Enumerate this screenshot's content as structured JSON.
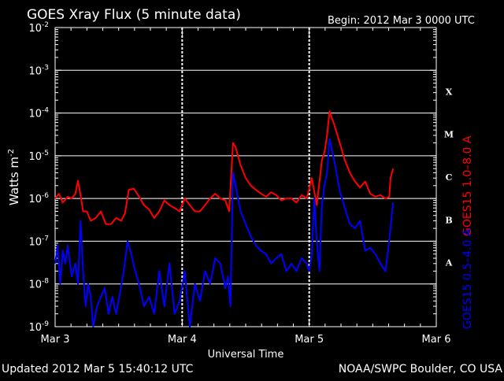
{
  "header": {
    "title": "GOES Xray Flux (5 minute data)",
    "begin": "Begin:  2012 Mar 3 0000 UTC"
  },
  "footer": {
    "updated": "Updated 2012 Mar  5 15:40:12 UTC",
    "credit": "NOAA/SWPC Boulder, CO USA"
  },
  "colors": {
    "background": "#000000",
    "long_channel": "#ff0000",
    "short_channel": "#0000ff",
    "grid": "#ffffff",
    "text": "#ffffff"
  },
  "flare_classes": [
    "X",
    "M",
    "C",
    "B",
    "A"
  ],
  "chart_data": {
    "type": "line",
    "title": "GOES Xray Flux (5 minute data)",
    "xlabel": "Universal Time",
    "ylabel": "Watts m",
    "ylabel_sup": "-2",
    "y_scale": "log",
    "ylim": [
      1e-09,
      0.01
    ],
    "y_ticks": [
      {
        "mantissa": "10",
        "exp": "-2"
      },
      {
        "mantissa": "10",
        "exp": "-3"
      },
      {
        "mantissa": "10",
        "exp": "-4"
      },
      {
        "mantissa": "10",
        "exp": "-5"
      },
      {
        "mantissa": "10",
        "exp": "-6"
      },
      {
        "mantissa": "10",
        "exp": "-7"
      },
      {
        "mantissa": "10",
        "exp": "-8"
      },
      {
        "mantissa": "10",
        "exp": "-9"
      }
    ],
    "x_ticks": [
      "Mar 3",
      "Mar 4",
      "Mar 5",
      "Mar 6"
    ],
    "xlim_days": [
      0,
      3
    ],
    "grid": true,
    "series": [
      {
        "name": "GOES15 1.0–8.0 A",
        "color": "#ff0000",
        "x": [
          0.0,
          0.03,
          0.06,
          0.1,
          0.13,
          0.16,
          0.18,
          0.2,
          0.22,
          0.25,
          0.28,
          0.32,
          0.36,
          0.4,
          0.44,
          0.48,
          0.52,
          0.55,
          0.58,
          0.62,
          0.66,
          0.7,
          0.74,
          0.78,
          0.82,
          0.86,
          0.9,
          0.94,
          0.98,
          1.02,
          1.06,
          1.1,
          1.14,
          1.18,
          1.22,
          1.26,
          1.3,
          1.34,
          1.37,
          1.4,
          1.42,
          1.46,
          1.5,
          1.54,
          1.58,
          1.62,
          1.66,
          1.7,
          1.74,
          1.78,
          1.82,
          1.86,
          1.9,
          1.94,
          1.98,
          2.02,
          2.06,
          2.1,
          2.12,
          2.14,
          2.16,
          2.2,
          2.24,
          2.28,
          2.32,
          2.36,
          2.4,
          2.44,
          2.48,
          2.52,
          2.56,
          2.6,
          2.63,
          2.64,
          2.66
        ],
        "y": [
          1e-06,
          1.3e-06,
          8e-07,
          1.1e-06,
          1e-06,
          1.3e-06,
          2.6e-06,
          1.2e-06,
          5e-07,
          5e-07,
          3e-07,
          3.5e-07,
          5e-07,
          2.5e-07,
          2.5e-07,
          3.5e-07,
          3e-07,
          4.5e-07,
          1.6e-06,
          1.7e-06,
          1.1e-06,
          7e-07,
          5.5e-07,
          3.5e-07,
          5e-07,
          9e-07,
          7e-07,
          6e-07,
          5e-07,
          1e-06,
          7e-07,
          5e-07,
          5e-07,
          7e-07,
          1e-06,
          1.3e-06,
          1e-06,
          9e-07,
          5e-07,
          2e-05,
          1.6e-05,
          6e-06,
          3e-06,
          2e-06,
          1.6e-06,
          1.3e-06,
          1.1e-06,
          1.4e-06,
          1.2e-06,
          9e-07,
          1e-06,
          1e-06,
          8e-07,
          1.2e-06,
          1e-06,
          3e-06,
          7e-07,
          8e-06,
          1.2e-05,
          3e-05,
          0.00011,
          5e-05,
          2e-05,
          8e-06,
          4e-06,
          2.5e-06,
          1.8e-06,
          2.5e-06,
          1.3e-06,
          1.1e-06,
          1.2e-06,
          1e-06,
          1.1e-06,
          3e-06,
          5e-06
        ]
      },
      {
        "name": "GOES15 0.5–4.0 A",
        "color": "#0000ff",
        "x": [
          0.0,
          0.02,
          0.04,
          0.06,
          0.08,
          0.1,
          0.13,
          0.16,
          0.18,
          0.2,
          0.22,
          0.24,
          0.26,
          0.28,
          0.3,
          0.33,
          0.36,
          0.39,
          0.42,
          0.45,
          0.48,
          0.51,
          0.54,
          0.57,
          0.6,
          0.63,
          0.66,
          0.7,
          0.74,
          0.78,
          0.82,
          0.86,
          0.9,
          0.94,
          0.98,
          1.02,
          1.06,
          1.1,
          1.14,
          1.18,
          1.22,
          1.26,
          1.3,
          1.34,
          1.36,
          1.38,
          1.4,
          1.42,
          1.46,
          1.5,
          1.54,
          1.58,
          1.62,
          1.66,
          1.7,
          1.74,
          1.78,
          1.82,
          1.86,
          1.9,
          1.94,
          1.98,
          2.0,
          2.02,
          2.04,
          2.06,
          2.08,
          2.1,
          2.12,
          2.14,
          2.16,
          2.2,
          2.24,
          2.28,
          2.32,
          2.36,
          2.4,
          2.44,
          2.48,
          2.52,
          2.56,
          2.6,
          2.62,
          2.64,
          2.66
        ],
        "y": [
          3e-08,
          8e-08,
          1e-08,
          6e-08,
          3e-08,
          8e-08,
          1.5e-08,
          3e-08,
          1e-08,
          3e-07,
          2e-08,
          3e-09,
          1e-08,
          5e-09,
          1e-09,
          3e-09,
          5e-09,
          8e-09,
          2e-09,
          5e-09,
          2e-09,
          6e-09,
          2e-08,
          1e-07,
          5e-08,
          2e-08,
          1e-08,
          3e-09,
          5e-09,
          2e-09,
          2e-08,
          3e-09,
          3e-08,
          2e-09,
          4e-09,
          2e-08,
          1e-09,
          1e-08,
          4e-09,
          2e-08,
          1e-08,
          4e-08,
          3e-08,
          8e-09,
          1.5e-08,
          3e-09,
          4e-06,
          2e-06,
          5e-07,
          2.5e-07,
          1.3e-07,
          8e-08,
          6e-08,
          5e-08,
          3e-08,
          4e-08,
          5e-08,
          2e-08,
          3e-08,
          2e-08,
          4e-08,
          3e-08,
          2e-08,
          5e-08,
          1e-06,
          1e-07,
          2e-08,
          7e-07,
          2e-06,
          4e-06,
          2.5e-05,
          7e-06,
          1.5e-06,
          6e-07,
          2.5e-07,
          2e-07,
          3e-07,
          6e-08,
          7e-08,
          5e-08,
          3e-08,
          2e-08,
          6e-08,
          2e-07,
          8e-07
        ]
      }
    ]
  }
}
